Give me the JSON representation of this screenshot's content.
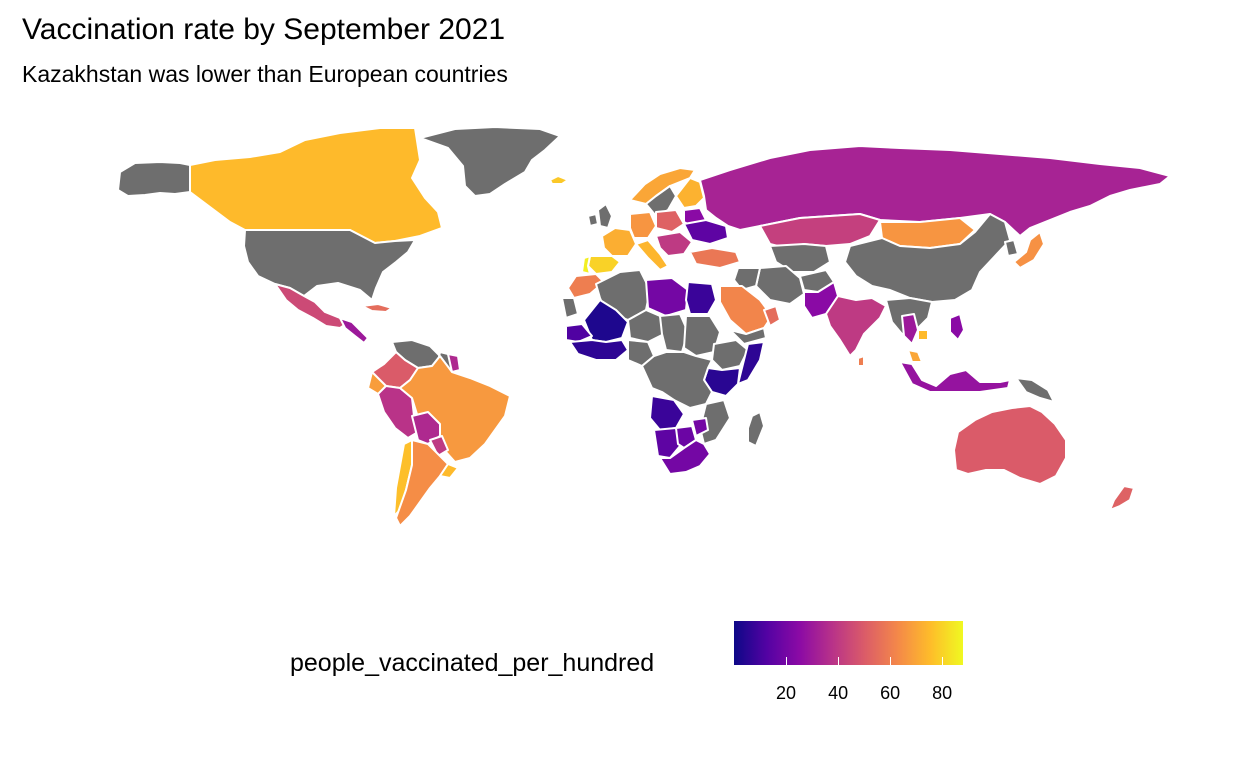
{
  "title": "Vaccination rate by September 2021",
  "subtitle": "Kazakhstan was lower than European countries",
  "legend": {
    "title": "people_vaccinated_per_hundred",
    "min": 0,
    "max": 88,
    "ticks": [
      {
        "value": 20,
        "label": "20"
      },
      {
        "value": 40,
        "label": "40"
      },
      {
        "value": 60,
        "label": "60"
      },
      {
        "value": 80,
        "label": "80"
      }
    ],
    "palette": "plasma",
    "palette_stops": [
      "#0d0887",
      "#5302a3",
      "#8b0aa5",
      "#b83289",
      "#db5c68",
      "#f48849",
      "#febc2a",
      "#f0f921"
    ]
  },
  "colors": {
    "no_data": "#6e6e6e",
    "border": "#ffffff",
    "background": "#ffffff"
  },
  "map": {
    "projection": "equirectangular",
    "regions": [
      {
        "name": "Canada",
        "value": 75
      },
      {
        "name": "United States",
        "value": null
      },
      {
        "name": "Alaska",
        "value": null
      },
      {
        "name": "Greenland",
        "value": null
      },
      {
        "name": "Mexico",
        "value": 45
      },
      {
        "name": "Central America",
        "value": 30
      },
      {
        "name": "Cuba",
        "value": 55
      },
      {
        "name": "Venezuela",
        "value": null
      },
      {
        "name": "Guyana",
        "value": null
      },
      {
        "name": "Suriname",
        "value": 35
      },
      {
        "name": "Colombia",
        "value": 50
      },
      {
        "name": "Ecuador",
        "value": 68
      },
      {
        "name": "Peru",
        "value": 38
      },
      {
        "name": "Brazil",
        "value": 67
      },
      {
        "name": "Bolivia",
        "value": 35
      },
      {
        "name": "Paraguay",
        "value": 40
      },
      {
        "name": "Chile",
        "value": 76
      },
      {
        "name": "Argentina",
        "value": 64
      },
      {
        "name": "Uruguay",
        "value": 75
      },
      {
        "name": "Iceland",
        "value": 78
      },
      {
        "name": "Norway",
        "value": 70
      },
      {
        "name": "Sweden",
        "value": null
      },
      {
        "name": "Finland",
        "value": 73
      },
      {
        "name": "United Kingdom",
        "value": null
      },
      {
        "name": "Ireland",
        "value": null
      },
      {
        "name": "France",
        "value": 72
      },
      {
        "name": "Spain",
        "value": 80
      },
      {
        "name": "Portugal",
        "value": 86
      },
      {
        "name": "Germany",
        "value": 66
      },
      {
        "name": "Poland",
        "value": 52
      },
      {
        "name": "Italy",
        "value": 74
      },
      {
        "name": "Balkans",
        "value": 40
      },
      {
        "name": "Ukraine",
        "value": 15
      },
      {
        "name": "Belarus",
        "value": 25
      },
      {
        "name": "Turkey",
        "value": 58
      },
      {
        "name": "Russia",
        "value": 33
      },
      {
        "name": "Kazakhstan",
        "value": 42
      },
      {
        "name": "Mongolia",
        "value": 66
      },
      {
        "name": "China",
        "value": null
      },
      {
        "name": "Central Asia",
        "value": null
      },
      {
        "name": "Iran",
        "value": null
      },
      {
        "name": "Iraq",
        "value": null
      },
      {
        "name": "Saudi Arabia",
        "value": 62
      },
      {
        "name": "Yemen",
        "value": null
      },
      {
        "name": "Oman",
        "value": 55
      },
      {
        "name": "Pakistan",
        "value": 25
      },
      {
        "name": "Afghanistan",
        "value": null
      },
      {
        "name": "India",
        "value": 40
      },
      {
        "name": "Sri Lanka",
        "value": 60
      },
      {
        "name": "Southeast Asia",
        "value": null
      },
      {
        "name": "Thailand",
        "value": 30
      },
      {
        "name": "Cambodia",
        "value": 75
      },
      {
        "name": "Malaysia",
        "value": 70
      },
      {
        "name": "Philippines",
        "value": 25
      },
      {
        "name": "Indonesia",
        "value": 28
      },
      {
        "name": "Papua New Guinea",
        "value": null
      },
      {
        "name": "Japan",
        "value": 65
      },
      {
        "name": "Korea",
        "value": null
      },
      {
        "name": "Australia",
        "value": 50
      },
      {
        "name": "New Zealand",
        "value": 52
      },
      {
        "name": "Morocco",
        "value": 60
      },
      {
        "name": "Western Sahara",
        "value": null
      },
      {
        "name": "Algeria",
        "value": null
      },
      {
        "name": "Libya",
        "value": 20
      },
      {
        "name": "Egypt",
        "value": 8
      },
      {
        "name": "Mali",
        "value": 3
      },
      {
        "name": "Niger",
        "value": null
      },
      {
        "name": "Chad",
        "value": null
      },
      {
        "name": "Sudan",
        "value": null
      },
      {
        "name": "Senegal",
        "value": 12
      },
      {
        "name": "West Africa",
        "value": 6
      },
      {
        "name": "Nigeria",
        "value": null
      },
      {
        "name": "Ethiopia",
        "value": null
      },
      {
        "name": "Kenya",
        "value": 5
      },
      {
        "name": "Somalia",
        "value": 6
      },
      {
        "name": "Central Africa",
        "value": null
      },
      {
        "name": "Angola",
        "value": 8
      },
      {
        "name": "Namibia",
        "value": 15
      },
      {
        "name": "Botswana",
        "value": 18
      },
      {
        "name": "Zimbabwe",
        "value": 20
      },
      {
        "name": "Mozambique",
        "value": null
      },
      {
        "name": "South Africa",
        "value": 20
      },
      {
        "name": "Madagascar",
        "value": null
      }
    ]
  }
}
